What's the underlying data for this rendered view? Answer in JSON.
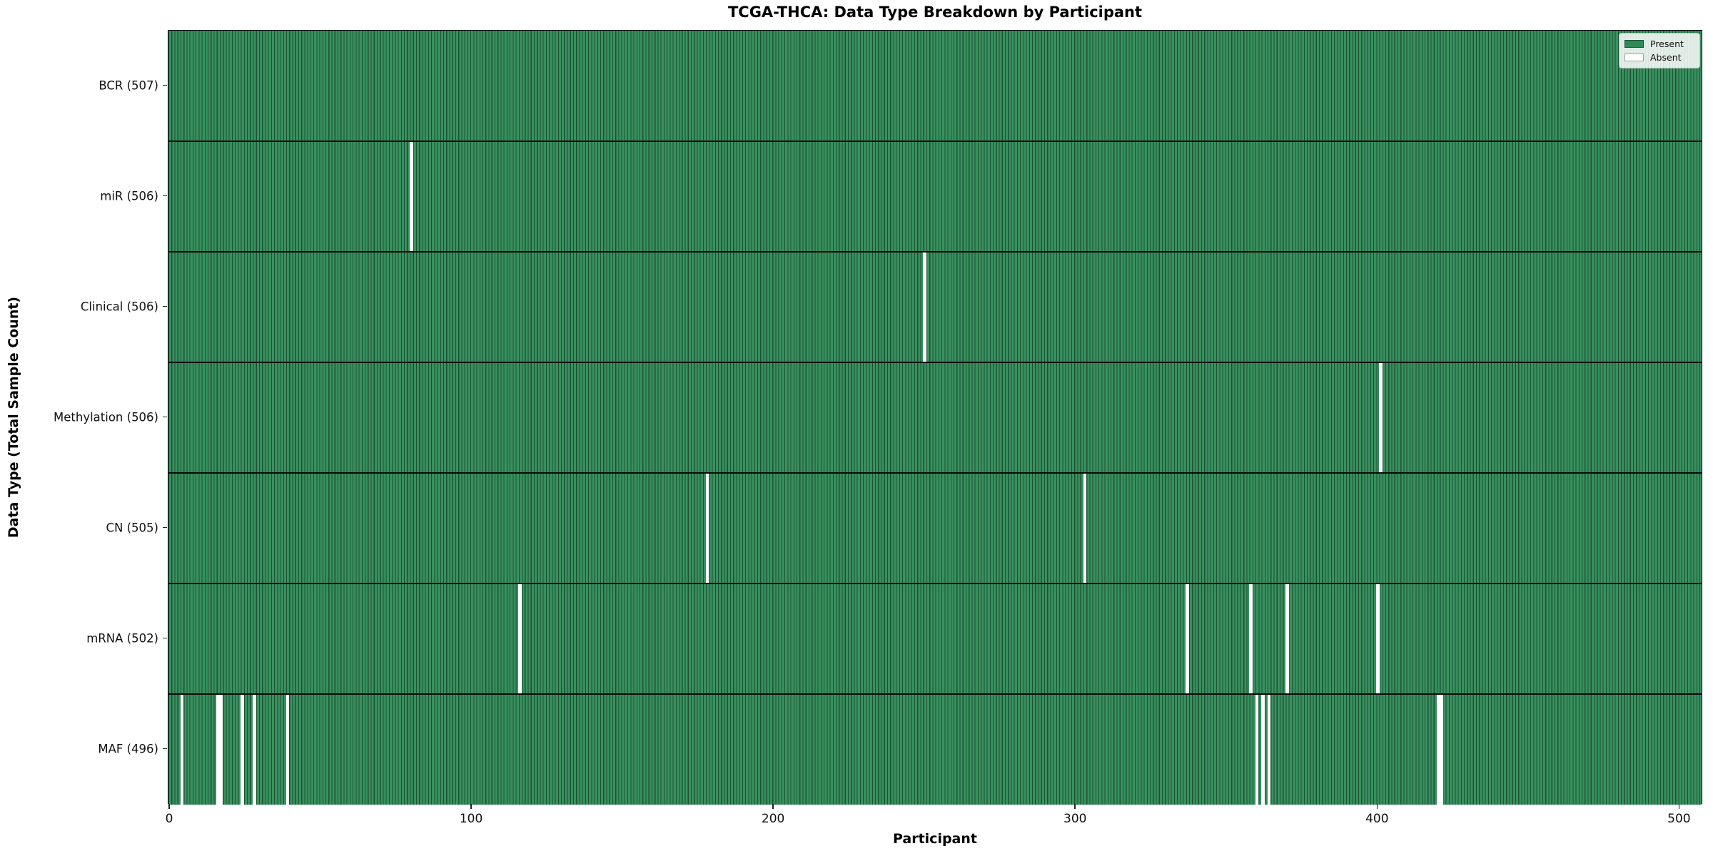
{
  "chart_data": {
    "type": "heatmap",
    "title": "TCGA-THCA: Data Type Breakdown by Participant",
    "xlabel": "Participant",
    "ylabel": "Data Type (Total Sample Count)",
    "n_participants": 507,
    "x_ticks": [
      0,
      100,
      200,
      300,
      400,
      500
    ],
    "xlim": [
      0,
      507
    ],
    "grid": false,
    "legend_position": "upper right",
    "legend": [
      {
        "label": "Present",
        "color": "#2e8b57"
      },
      {
        "label": "Absent",
        "color": "#ffffff"
      }
    ],
    "rows": [
      {
        "label": "BCR (507)",
        "total": 507,
        "absent": []
      },
      {
        "label": "miR (506)",
        "total": 506,
        "absent": [
          80
        ]
      },
      {
        "label": "Clinical (506)",
        "total": 506,
        "absent": [
          250
        ]
      },
      {
        "label": "Methylation (506)",
        "total": 506,
        "absent": [
          401
        ]
      },
      {
        "label": "CN (505)",
        "total": 505,
        "absent": [
          178,
          303
        ]
      },
      {
        "label": "mRNA (502)",
        "total": 502,
        "absent": [
          116,
          337,
          358,
          370,
          400
        ]
      },
      {
        "label": "MAF (496)",
        "total": 496,
        "absent": [
          4,
          16,
          17,
          24,
          28,
          39,
          360,
          362,
          364,
          420,
          421
        ]
      }
    ],
    "colors": {
      "bar_fill": "#38905f",
      "bar_edge": "#1e5233",
      "absent": "#ffffff",
      "row_divider": "#0b0b0b"
    }
  }
}
